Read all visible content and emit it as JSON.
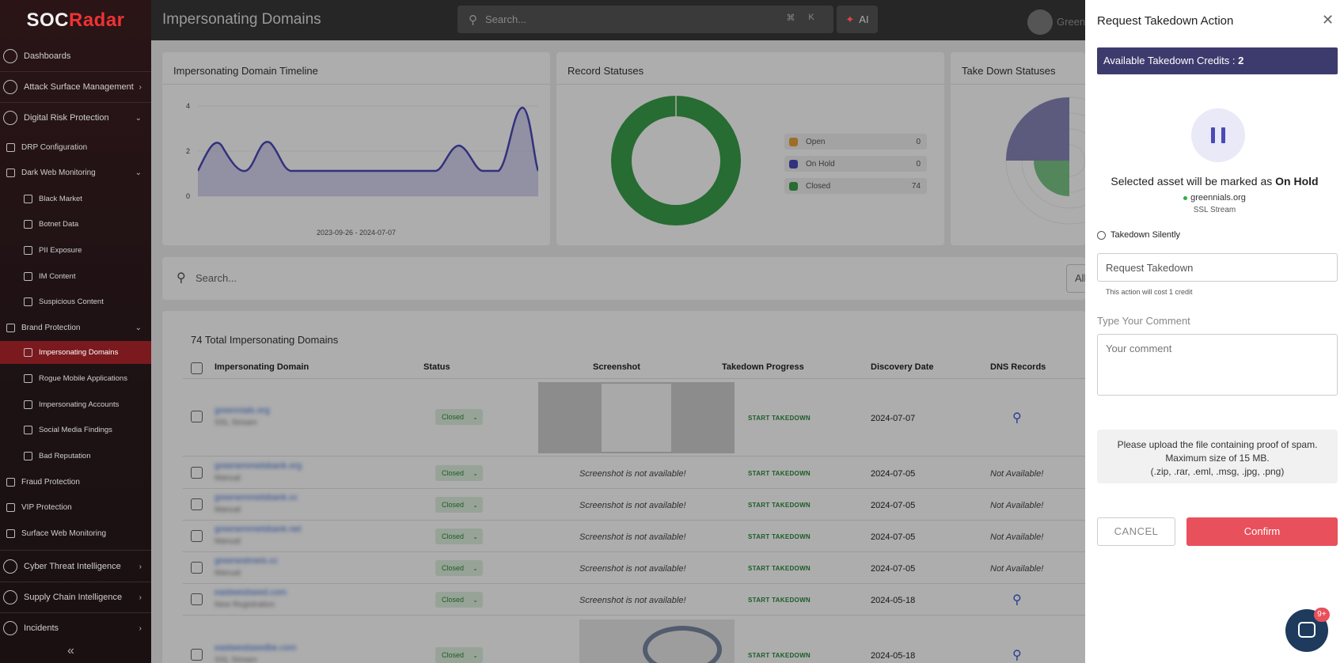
{
  "app": {
    "brand_left": "SOC",
    "brand_right": "Radar",
    "page_title": "Impersonating Domains"
  },
  "topbar": {
    "search_placeholder": "Search...",
    "kbd_cmd": "⌘",
    "kbd_k": "K",
    "ai_label": "AI",
    "user_name": "Greenn"
  },
  "sidebar": {
    "dashboards": "Dashboards",
    "asm": "Attack Surface Management",
    "drp": "Digital Risk Protection",
    "drp_config": "DRP Configuration",
    "dark_web": "Dark Web Monitoring",
    "black_market": "Black Market",
    "botnet": "Botnet Data",
    "pii": "PII Exposure",
    "im": "IM Content",
    "suspicious": "Suspicious Content",
    "brand": "Brand Protection",
    "imp_domains": "Impersonating Domains",
    "rogue": "Rogue Mobile Applications",
    "imp_accounts": "Impersonating Accounts",
    "social": "Social Media Findings",
    "bad_rep": "Bad Reputation",
    "fraud": "Fraud Protection",
    "vip": "VIP Protection",
    "surface": "Surface Web Monitoring",
    "cti": "Cyber Threat Intelligence",
    "supply": "Supply Chain Intelligence",
    "incidents": "Incidents"
  },
  "timeline": {
    "title": "Impersonating Domain Timeline",
    "range": "2023-09-26 - 2024-07-07",
    "yticks": [
      "4",
      "2",
      "0"
    ]
  },
  "record_statuses": {
    "title": "Record Statuses",
    "legend": [
      {
        "label": "Open",
        "value": "0",
        "color": "#e8a23a"
      },
      {
        "label": "On Hold",
        "value": "0",
        "color": "#4a4ab8"
      },
      {
        "label": "Closed",
        "value": "74",
        "color": "#3aa04a"
      }
    ]
  },
  "takedown_statuses": {
    "title": "Take Down Statuses"
  },
  "table_search": {
    "placeholder": "Search...",
    "time_filter": "All time"
  },
  "table": {
    "total": "74 Total Impersonating Domains",
    "headers": [
      "Impersonating Domain",
      "Status",
      "Screenshot",
      "Takedown Progress",
      "Discovery Date",
      "DNS Records"
    ],
    "rows": [
      {
        "domain": "greennials.org",
        "sub": "SSL Stream",
        "status": "Closed",
        "screenshot": "",
        "takedown": "START TAKEDOWN",
        "date": "2024-07-07",
        "dns": ""
      },
      {
        "domain": "greenemmetsbank.org",
        "sub": "Manual",
        "status": "Closed",
        "screenshot": "Screenshot is not available!",
        "takedown": "START TAKEDOWN",
        "date": "2024-07-05",
        "dns": "Not Available!"
      },
      {
        "domain": "greenemmetsbank.cc",
        "sub": "Manual",
        "status": "Closed",
        "screenshot": "Screenshot is not available!",
        "takedown": "START TAKEDOWN",
        "date": "2024-07-05",
        "dns": "Not Available!"
      },
      {
        "domain": "greenemmetsbank.net",
        "sub": "Manual",
        "status": "Closed",
        "screenshot": "Screenshot is not available!",
        "takedown": "START TAKEDOWN",
        "date": "2024-07-05",
        "dns": "Not Available!"
      },
      {
        "domain": "greenestmeis.cc",
        "sub": "Manual",
        "status": "Closed",
        "screenshot": "Screenshot is not available!",
        "takedown": "START TAKEDOWN",
        "date": "2024-07-05",
        "dns": "Not Available!"
      },
      {
        "domain": "eastwestseed.com",
        "sub": "New Registration",
        "status": "Closed",
        "screenshot": "Screenshot is not available!",
        "takedown": "START TAKEDOWN",
        "date": "2024-05-18",
        "dns": ""
      },
      {
        "domain": "eastwestseedbe.com",
        "sub": "SSL Stream",
        "status": "Closed",
        "screenshot": "",
        "takedown": "START TAKEDOWN",
        "date": "2024-05-18",
        "dns": ""
      }
    ]
  },
  "modal": {
    "title": "Request Takedown Action",
    "credits_label": "Available Takedown Credits : ",
    "credits_value": "2",
    "marked_text": "Selected asset will be marked as ",
    "marked_status": "On Hold",
    "asset_domain": "greennials.org",
    "asset_source": "SSL Stream",
    "silent_label": "Takedown Silently",
    "action_select": "Request Takedown",
    "cost_note": "This action will cost 1 credit",
    "comment_label": "Type Your Comment",
    "comment_placeholder": "Your comment",
    "upload_line1": "Please upload the file containing proof of spam.",
    "upload_line2": "Maximum size of 15 MB.",
    "upload_line3": "(.zip, .rar, .eml, .msg, .jpg, .png)",
    "cancel": "CANCEL",
    "confirm": "Confirm"
  },
  "chat": {
    "badge": "9+"
  },
  "colors": {
    "accent": "#e8505b",
    "brand_purple": "#3d3b6e",
    "closed_green": "#3aa04a",
    "link_blue": "#3a6fd8"
  }
}
